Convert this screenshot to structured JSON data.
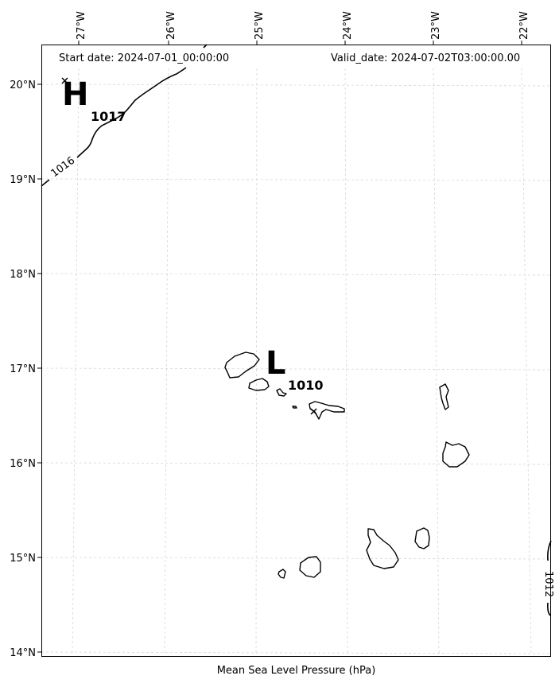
{
  "header": {
    "start_date": "Start date: 2024-07-01_00:00:00",
    "valid_date": "Valid_date: 2024-07-02T03:00:00.00"
  },
  "caption": "Mean Sea Level Pressure (hPa)",
  "axes": {
    "lon_ticks": [
      "27°W",
      "26°W",
      "25°W",
      "24°W",
      "23°W",
      "22°W"
    ],
    "lat_ticks": [
      "20°N",
      "19°N",
      "18°N",
      "17°N",
      "16°N",
      "15°N",
      "14°N"
    ]
  },
  "pressure_centers": [
    {
      "type": "H",
      "value": "1017"
    },
    {
      "type": "L",
      "value": "1010"
    }
  ],
  "isobars": [
    {
      "value": "1016"
    },
    {
      "value": "1012"
    }
  ],
  "colors": {
    "coastline": "#000000",
    "isobar": "#000000",
    "grid": "#cccccc"
  }
}
